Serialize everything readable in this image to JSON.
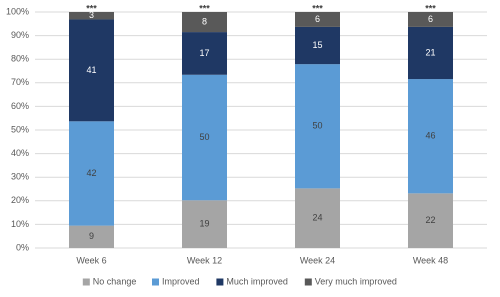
{
  "chart_data": {
    "type": "bar",
    "stacking": "percent",
    "categories": [
      "Week 6",
      "Week 12",
      "Week 24",
      "Week 48"
    ],
    "series": [
      {
        "color": "#a5a5a5",
        "values": [
          0,
          0,
          0,
          0
        ]
      },
      {
        "name": "No change",
        "color": "#a5a5a5",
        "values": [
          9,
          19,
          24,
          22
        ]
      },
      {
        "name": "Improved",
        "color": "#5b9bd5",
        "values": [
          42,
          50,
          50,
          46
        ]
      },
      {
        "name": "Much improved",
        "color": "#1f3864",
        "values": [
          41,
          17,
          15,
          21
        ]
      },
      {
        "name": "Very much improved",
        "color": "#595959",
        "values": [
          3,
          8,
          6,
          6
        ]
      }
    ],
    "annotations": [
      "***",
      "***",
      "***",
      "***"
    ],
    "ylim": [
      0,
      100
    ],
    "yticks": [
      {
        "value": 0,
        "label": "0%"
      },
      {
        "value": 10,
        "label": "10%"
      },
      {
        "value": 20,
        "label": "20%"
      },
      {
        "value": 30,
        "label": "30%"
      },
      {
        "value": 40,
        "label": "40%"
      },
      {
        "value": 50,
        "label": "50%"
      },
      {
        "value": 60,
        "label": "60%"
      },
      {
        "value": 70,
        "label": "70%"
      },
      {
        "value": 80,
        "label": "80%"
      },
      {
        "value": 90,
        "label": "90%"
      },
      {
        "value": 100,
        "label": "100%"
      }
    ],
    "grid": true,
    "legend": "bottom"
  }
}
